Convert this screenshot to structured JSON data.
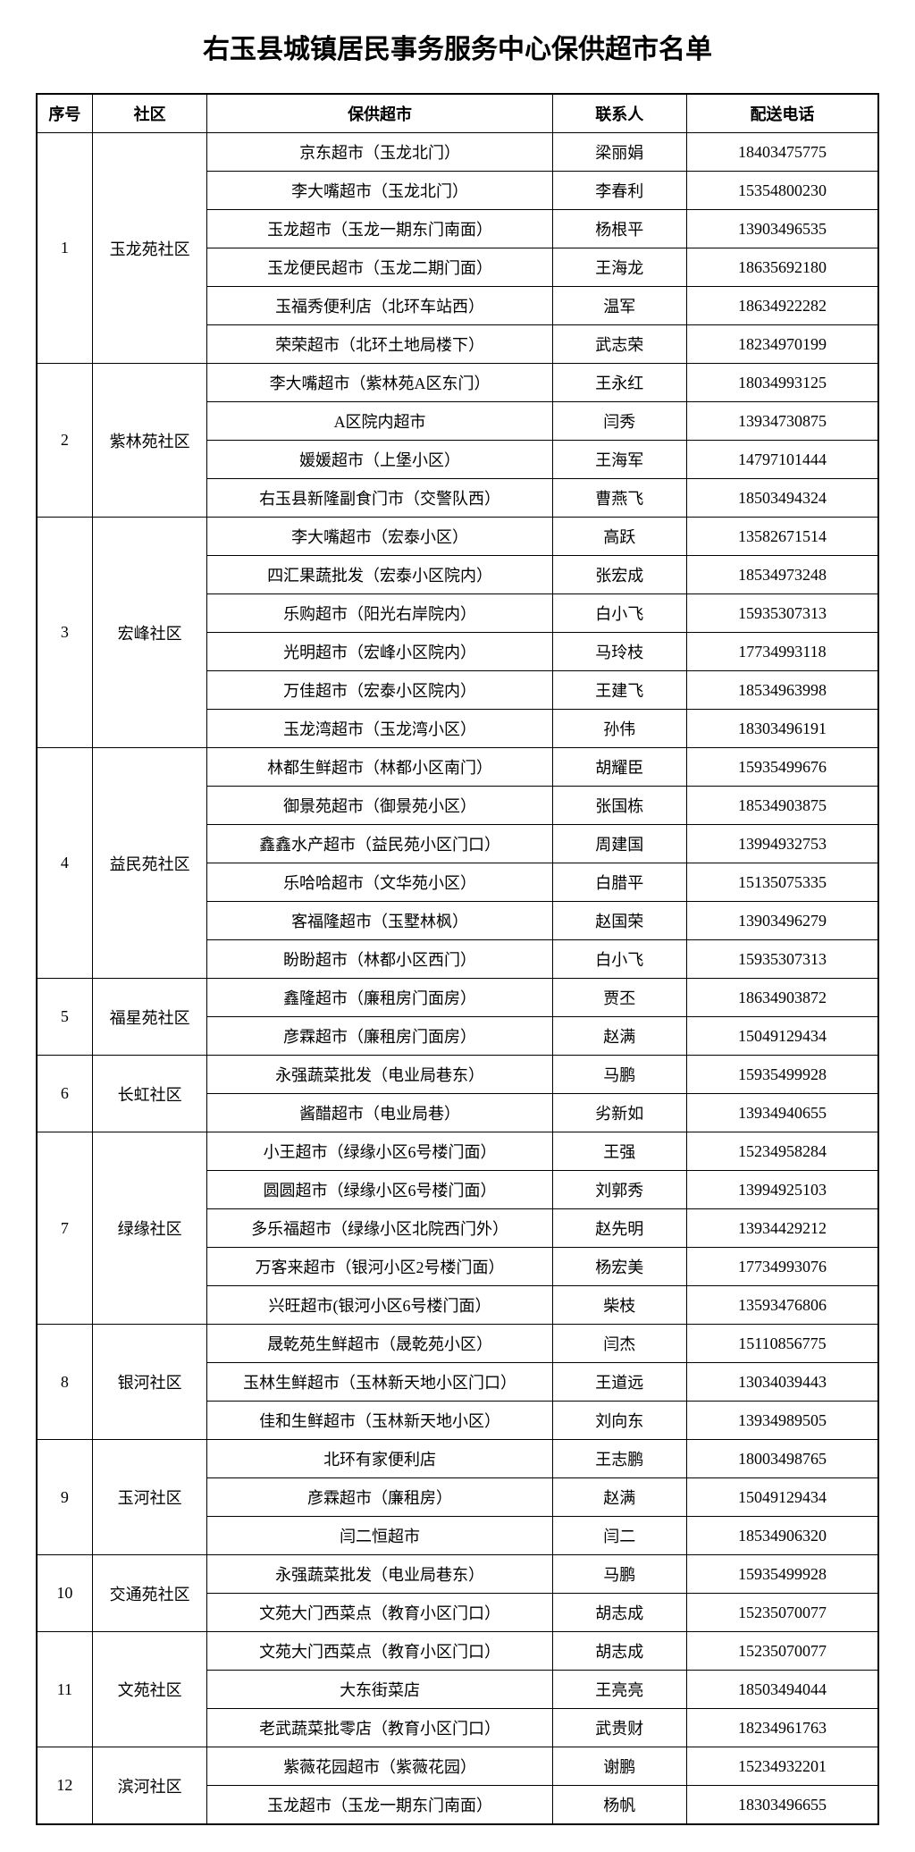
{
  "title": "右玉县城镇居民事务服务中心保供超市名单",
  "headers": {
    "num": "序号",
    "community": "社区",
    "supermarket": "保供超市",
    "contact": "联系人",
    "phone": "配送电话"
  },
  "groups": [
    {
      "num": "1",
      "community": "玉龙苑社区",
      "rows": [
        {
          "supermarket": "京东超市（玉龙北门）",
          "contact": "梁丽娟",
          "phone": "18403475775"
        },
        {
          "supermarket": "李大嘴超市（玉龙北门）",
          "contact": "李春利",
          "phone": "15354800230"
        },
        {
          "supermarket": "玉龙超市（玉龙一期东门南面）",
          "contact": "杨根平",
          "phone": "13903496535"
        },
        {
          "supermarket": "玉龙便民超市（玉龙二期门面）",
          "contact": "王海龙",
          "phone": "18635692180"
        },
        {
          "supermarket": "玉福秀便利店（北环车站西）",
          "contact": "温军",
          "phone": "18634922282"
        },
        {
          "supermarket": "荣荣超市（北环土地局楼下）",
          "contact": "武志荣",
          "phone": "18234970199"
        }
      ]
    },
    {
      "num": "2",
      "community": "紫林苑社区",
      "rows": [
        {
          "supermarket": "李大嘴超市（紫林苑A区东门）",
          "contact": "王永红",
          "phone": "18034993125"
        },
        {
          "supermarket": "A区院内超市",
          "contact": "闫秀",
          "phone": "13934730875"
        },
        {
          "supermarket": "媛媛超市（上堡小区）",
          "contact": "王海军",
          "phone": "14797101444"
        },
        {
          "supermarket": "右玉县新隆副食门市（交警队西）",
          "contact": "曹燕飞",
          "phone": "18503494324"
        }
      ]
    },
    {
      "num": "3",
      "community": "宏峰社区",
      "rows": [
        {
          "supermarket": "李大嘴超市（宏泰小区）",
          "contact": "高跃",
          "phone": "13582671514"
        },
        {
          "supermarket": "四汇果蔬批发（宏泰小区院内）",
          "contact": "张宏成",
          "phone": "18534973248"
        },
        {
          "supermarket": "乐购超市（阳光右岸院内）",
          "contact": "白小飞",
          "phone": "15935307313"
        },
        {
          "supermarket": "光明超市（宏峰小区院内）",
          "contact": "马玲枝",
          "phone": "17734993118"
        },
        {
          "supermarket": "万佳超市（宏泰小区院内）",
          "contact": "王建飞",
          "phone": "18534963998"
        },
        {
          "supermarket": "玉龙湾超市（玉龙湾小区）",
          "contact": "孙伟",
          "phone": "18303496191"
        }
      ]
    },
    {
      "num": "4",
      "community": "益民苑社区",
      "rows": [
        {
          "supermarket": "林都生鲜超市（林都小区南门）",
          "contact": "胡耀臣",
          "phone": "15935499676"
        },
        {
          "supermarket": "御景苑超市（御景苑小区）",
          "contact": "张国栋",
          "phone": "18534903875"
        },
        {
          "supermarket": "鑫鑫水产超市（益民苑小区门口）",
          "contact": "周建国",
          "phone": "13994932753"
        },
        {
          "supermarket": "乐哈哈超市（文华苑小区）",
          "contact": "白腊平",
          "phone": "15135075335"
        },
        {
          "supermarket": "客福隆超市（玉墅林枫）",
          "contact": "赵国荣",
          "phone": "13903496279"
        },
        {
          "supermarket": "盼盼超市（林都小区西门）",
          "contact": "白小飞",
          "phone": "15935307313"
        }
      ]
    },
    {
      "num": "5",
      "community": "福星苑社区",
      "rows": [
        {
          "supermarket": "鑫隆超市（廉租房门面房）",
          "contact": "贾丕",
          "phone": "18634903872"
        },
        {
          "supermarket": "彦霖超市（廉租房门面房）",
          "contact": "赵满",
          "phone": "15049129434"
        }
      ]
    },
    {
      "num": "6",
      "community": "长虹社区",
      "rows": [
        {
          "supermarket": "永强蔬菜批发（电业局巷东）",
          "contact": "马鹏",
          "phone": "15935499928"
        },
        {
          "supermarket": "酱醋超市（电业局巷）",
          "contact": "劣新如",
          "phone": "13934940655"
        }
      ]
    },
    {
      "num": "7",
      "community": "绿缘社区",
      "rows": [
        {
          "supermarket": "小王超市（绿缘小区6号楼门面）",
          "contact": "王强",
          "phone": "15234958284"
        },
        {
          "supermarket": "圆圆超市（绿缘小区6号楼门面）",
          "contact": "刘郭秀",
          "phone": "13994925103"
        },
        {
          "supermarket": "多乐福超市（绿缘小区北院西门外）",
          "contact": "赵先明",
          "phone": "13934429212"
        },
        {
          "supermarket": "万客来超市（银河小区2号楼门面）",
          "contact": "杨宏美",
          "phone": "17734993076"
        },
        {
          "supermarket": "兴旺超市(银河小区6号楼门面）",
          "contact": "柴枝",
          "phone": "13593476806"
        }
      ]
    },
    {
      "num": "8",
      "community": "银河社区",
      "rows": [
        {
          "supermarket": "晟乾苑生鲜超市（晟乾苑小区）",
          "contact": "闫杰",
          "phone": "15110856775"
        },
        {
          "supermarket": "玉林生鲜超市（玉林新天地小区门口）",
          "contact": "王道远",
          "phone": "13034039443"
        },
        {
          "supermarket": "佳和生鲜超市（玉林新天地小区）",
          "contact": "刘向东",
          "phone": "13934989505"
        }
      ]
    },
    {
      "num": "9",
      "community": "玉河社区",
      "rows": [
        {
          "supermarket": "北环有家便利店",
          "contact": "王志鹏",
          "phone": "18003498765"
        },
        {
          "supermarket": "彦霖超市（廉租房）",
          "contact": "赵满",
          "phone": "15049129434"
        },
        {
          "supermarket": "闫二恒超市",
          "contact": "闫二",
          "phone": "18534906320"
        }
      ]
    },
    {
      "num": "10",
      "community": "交通苑社区",
      "rows": [
        {
          "supermarket": "永强蔬菜批发（电业局巷东）",
          "contact": "马鹏",
          "phone": "15935499928"
        },
        {
          "supermarket": "文苑大门西菜点（教育小区门口）",
          "contact": "胡志成",
          "phone": "15235070077"
        }
      ]
    },
    {
      "num": "11",
      "community": "文苑社区",
      "rows": [
        {
          "supermarket": "文苑大门西菜点（教育小区门口）",
          "contact": "胡志成",
          "phone": "15235070077"
        },
        {
          "supermarket": "大东街菜店",
          "contact": "王亮亮",
          "phone": "18503494044"
        },
        {
          "supermarket": "老武蔬菜批零店（教育小区门口）",
          "contact": "武贵财",
          "phone": "18234961763"
        }
      ]
    },
    {
      "num": "12",
      "community": "滨河社区",
      "rows": [
        {
          "supermarket": "紫薇花园超市（紫薇花园）",
          "contact": "谢鹏",
          "phone": "15234932201"
        },
        {
          "supermarket": "玉龙超市（玉龙一期东门南面）",
          "contact": "杨帆",
          "phone": "18303496655"
        }
      ]
    }
  ]
}
